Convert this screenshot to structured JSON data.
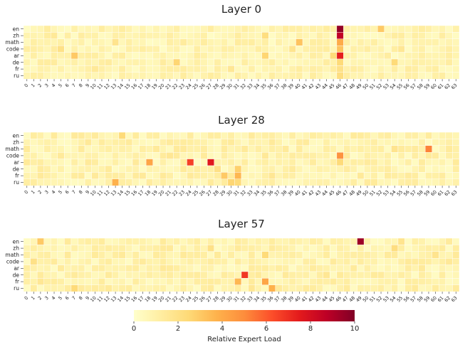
{
  "chart_data": {
    "type": "heatmap",
    "colorbar": {
      "label": "Relative Expert Load",
      "range": [
        0,
        10
      ],
      "ticks": [
        "0",
        "2",
        "4",
        "6",
        "8",
        "10"
      ],
      "colormap": "YlOrRd"
    },
    "languages": [
      "en",
      "zh",
      "math",
      "code",
      "ar",
      "de",
      "fr",
      "ru"
    ],
    "experts": [
      "0",
      "1",
      "2",
      "3",
      "4",
      "5",
      "6",
      "7",
      "8",
      "9",
      "10",
      "11",
      "12",
      "13",
      "14",
      "15",
      "16",
      "17",
      "18",
      "19",
      "20",
      "21",
      "22",
      "23",
      "24",
      "25",
      "26",
      "27",
      "28",
      "29",
      "30",
      "31",
      "32",
      "33",
      "34",
      "35",
      "36",
      "37",
      "38",
      "39",
      "40",
      "41",
      "42",
      "43",
      "44",
      "45",
      "46",
      "47",
      "48",
      "49",
      "50",
      "51",
      "52",
      "53",
      "54",
      "55",
      "56",
      "57",
      "58",
      "59",
      "60",
      "61",
      "62",
      "63"
    ],
    "panels": [
      {
        "title": "Layer 0",
        "base_load": 0.9,
        "hotspots": [
          [
            0,
            46,
            9.6
          ],
          [
            1,
            46,
            8.6
          ],
          [
            4,
            46,
            7.4
          ],
          [
            2,
            46,
            4.0
          ],
          [
            3,
            46,
            3.2
          ],
          [
            5,
            46,
            2.4
          ],
          [
            6,
            46,
            2.0
          ],
          [
            7,
            46,
            2.2
          ],
          [
            0,
            52,
            3.0
          ],
          [
            2,
            40,
            3.2
          ],
          [
            4,
            7,
            3.0
          ],
          [
            5,
            22,
            2.6
          ],
          [
            1,
            35,
            2.2
          ],
          [
            4,
            35,
            2.6
          ],
          [
            4,
            45,
            2.4
          ],
          [
            5,
            54,
            2.4
          ],
          [
            3,
            5,
            2.0
          ],
          [
            3,
            39,
            1.8
          ],
          [
            2,
            13,
            1.8
          ],
          [
            6,
            30,
            1.6
          ],
          [
            3,
            55,
            1.6
          ],
          [
            1,
            4,
            1.5
          ],
          [
            6,
            10,
            1.5
          ]
        ]
      },
      {
        "title": "Layer 28",
        "base_load": 1.0,
        "hotspots": [
          [
            4,
            24,
            6.6
          ],
          [
            4,
            27,
            7.6
          ],
          [
            4,
            18,
            4.2
          ],
          [
            3,
            46,
            4.8
          ],
          [
            2,
            59,
            5.2
          ],
          [
            7,
            13,
            3.8
          ],
          [
            6,
            31,
            3.6
          ],
          [
            5,
            31,
            2.8
          ],
          [
            6,
            29,
            3.0
          ],
          [
            7,
            30,
            2.6
          ],
          [
            7,
            31,
            2.4
          ],
          [
            0,
            14,
            2.4
          ],
          [
            2,
            54,
            1.8
          ],
          [
            5,
            28,
            2.0
          ],
          [
            4,
            46,
            2.4
          ],
          [
            3,
            21,
            1.6
          ],
          [
            1,
            9,
            1.5
          ],
          [
            6,
            36,
            1.6
          ],
          [
            3,
            35,
            1.5
          ]
        ]
      },
      {
        "title": "Layer 57",
        "base_load": 1.0,
        "hotspots": [
          [
            0,
            49,
            9.4
          ],
          [
            5,
            32,
            6.8
          ],
          [
            6,
            31,
            3.6
          ],
          [
            6,
            35,
            4.2
          ],
          [
            7,
            36,
            3.8
          ],
          [
            0,
            2,
            3.0
          ],
          [
            2,
            35,
            2.4
          ],
          [
            1,
            27,
            2.0
          ],
          [
            7,
            7,
            2.4
          ],
          [
            1,
            54,
            2.2
          ],
          [
            3,
            1,
            2.0
          ],
          [
            0,
            55,
            1.8
          ],
          [
            2,
            60,
            1.8
          ],
          [
            6,
            2,
            1.6
          ],
          [
            4,
            20,
            1.5
          ],
          [
            5,
            44,
            1.6
          ],
          [
            7,
            33,
            1.6
          ],
          [
            3,
            62,
            1.5
          ]
        ]
      }
    ]
  }
}
